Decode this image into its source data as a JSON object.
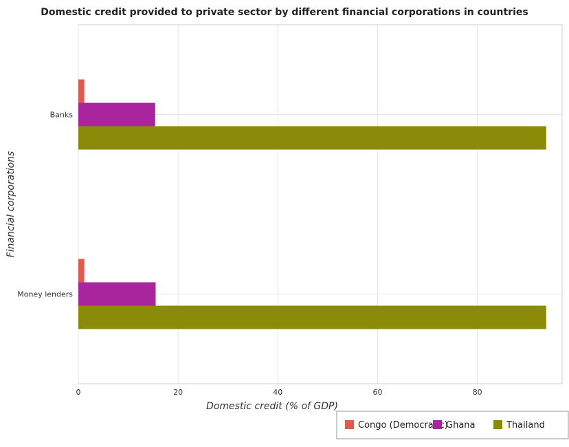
{
  "chart_data": {
    "type": "bar",
    "orientation": "horizontal",
    "title": "Domestic credit provided to private sector by different financial corporations in countries",
    "xlabel": "Domestic credit (% of GDP)",
    "ylabel": "Financial corporations",
    "categories": [
      "Banks",
      "Money lenders"
    ],
    "xlim": [
      0,
      97
    ],
    "xticks": [
      0,
      20,
      40,
      60,
      80
    ],
    "grid": true,
    "legend_position": "bottom-right",
    "series": [
      {
        "name": "Congo (Democratic)",
        "color": "#e05b4f",
        "values": [
          1.2,
          1.2
        ]
      },
      {
        "name": "Ghana",
        "color": "#a8259e",
        "values": [
          15.4,
          15.5
        ]
      },
      {
        "name": "Thailand",
        "color": "#8b8b0a",
        "values": [
          93.8,
          93.8
        ]
      }
    ]
  }
}
